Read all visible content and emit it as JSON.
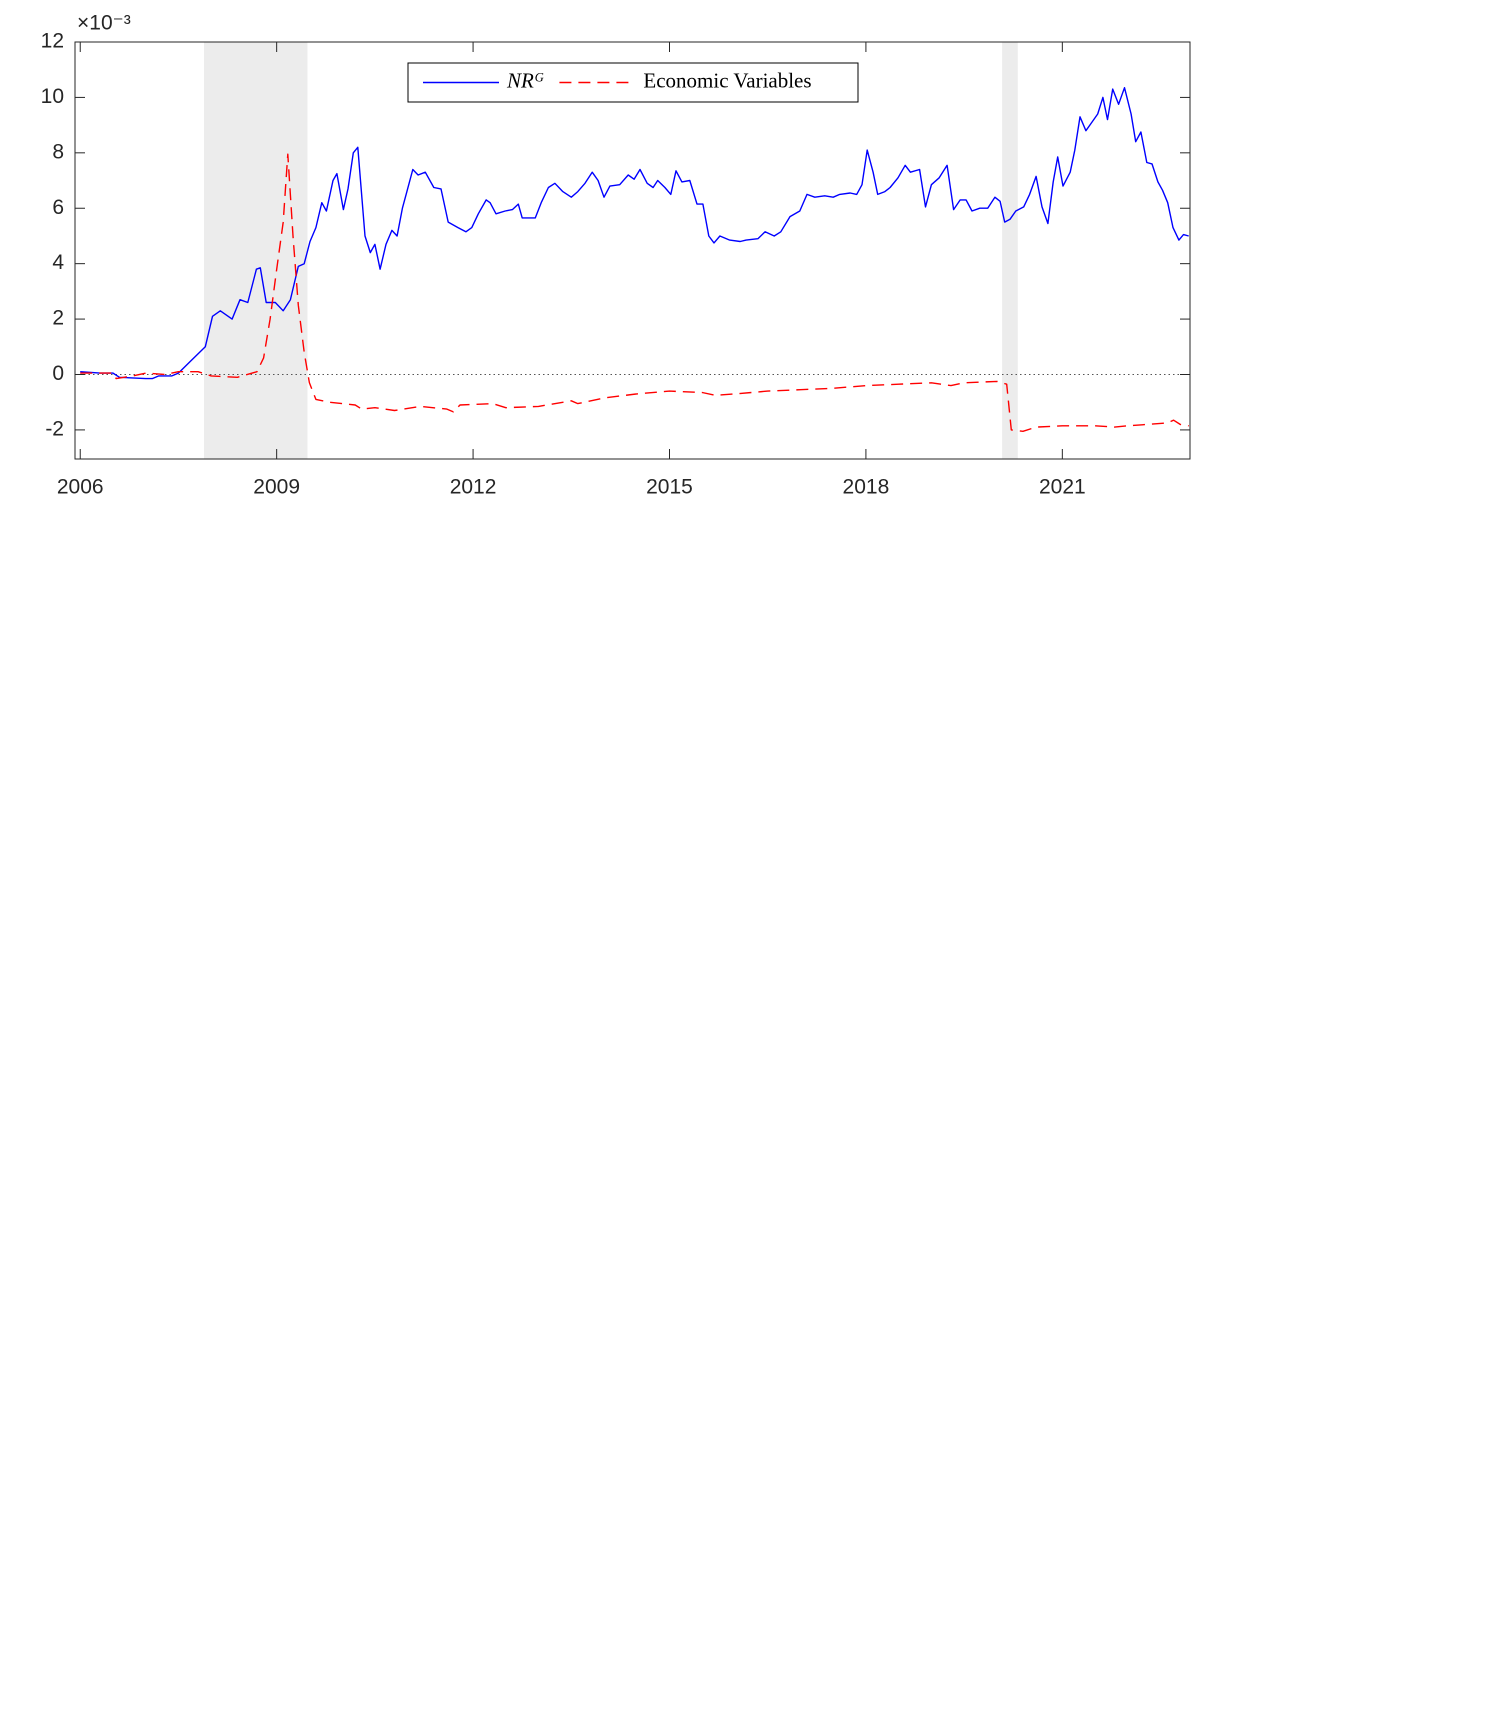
{
  "chart_data": {
    "type": "line",
    "y_exponent": "×10⁻³",
    "xlim": [
      2005.92,
      2022.95
    ],
    "ylim": [
      -3.05,
      12
    ],
    "xticks": [
      2006,
      2009,
      2012,
      2015,
      2018,
      2021
    ],
    "yticks": [
      -2,
      0,
      2,
      4,
      6,
      8,
      10,
      12
    ],
    "hline": 0,
    "shaded_regions": [
      [
        2007.89,
        2009.47
      ],
      [
        2020.08,
        2020.32
      ]
    ],
    "shade_color": "#ececec",
    "legend": "top-center",
    "series": [
      {
        "name": "NRᴳ",
        "color": "#0000ff",
        "line_style": "solid",
        "x": [
          2006.0,
          2006.3,
          2006.5,
          2006.6,
          2007.0,
          2007.1,
          2007.2,
          2007.4,
          2007.5,
          2007.68,
          2007.91,
          2008.02,
          2008.14,
          2008.32,
          2008.44,
          2008.56,
          2008.69,
          2008.75,
          2008.84,
          2008.98,
          2009.1,
          2009.21,
          2009.33,
          2009.42,
          2009.51,
          2009.6,
          2009.69,
          2009.76,
          2009.86,
          2009.92,
          2010.02,
          2010.09,
          2010.17,
          2010.24,
          2010.35,
          2010.43,
          2010.5,
          2010.58,
          2010.67,
          2010.76,
          2010.84,
          2010.92,
          2010.99,
          2011.08,
          2011.16,
          2011.27,
          2011.4,
          2011.51,
          2011.62,
          2011.77,
          2011.89,
          2011.98,
          2012.08,
          2012.2,
          2012.26,
          2012.35,
          2012.49,
          2012.6,
          2012.69,
          2012.75,
          2012.95,
          2013.04,
          2013.15,
          2013.25,
          2013.37,
          2013.5,
          2013.6,
          2013.71,
          2013.82,
          2013.91,
          2014.0,
          2014.09,
          2014.24,
          2014.37,
          2014.46,
          2014.55,
          2014.66,
          2014.75,
          2014.82,
          2014.93,
          2015.02,
          2015.1,
          2015.19,
          2015.31,
          2015.42,
          2015.51,
          2015.6,
          2015.68,
          2015.77,
          2015.92,
          2016.08,
          2016.17,
          2016.35,
          2016.46,
          2016.6,
          2016.7,
          2016.84,
          2016.99,
          2017.1,
          2017.22,
          2017.37,
          2017.5,
          2017.6,
          2017.76,
          2017.86,
          2017.94,
          2018.02,
          2018.11,
          2018.18,
          2018.29,
          2018.37,
          2018.49,
          2018.6,
          2018.68,
          2018.82,
          2018.91,
          2019.0,
          2019.12,
          2019.24,
          2019.34,
          2019.44,
          2019.53,
          2019.62,
          2019.74,
          2019.86,
          2019.97,
          2020.05,
          2020.12,
          2020.2,
          2020.29,
          2020.41,
          2020.5,
          2020.6,
          2020.69,
          2020.78,
          2020.86,
          2020.93,
          2021.01,
          2021.12,
          2021.19,
          2021.27,
          2021.36,
          2021.45,
          2021.54,
          2021.62,
          2021.69,
          2021.77,
          2021.86,
          2021.95,
          2022.05,
          2022.12,
          2022.2,
          2022.29,
          2022.37,
          2022.46,
          2022.53,
          2022.61,
          2022.69,
          2022.78,
          2022.85,
          2022.93
        ],
        "values": [
          0.1,
          0.05,
          0.05,
          -0.1,
          -0.15,
          -0.15,
          -0.05,
          -0.05,
          0.05,
          0.47,
          1.0,
          2.1,
          2.3,
          2.0,
          2.7,
          2.6,
          3.8,
          3.85,
          2.6,
          2.6,
          2.3,
          2.7,
          3.9,
          4.0,
          4.8,
          5.3,
          6.2,
          5.9,
          7.0,
          7.25,
          5.95,
          6.7,
          8.0,
          8.2,
          5.0,
          4.4,
          4.7,
          3.8,
          4.7,
          5.2,
          5.0,
          6.0,
          6.6,
          7.4,
          7.2,
          7.3,
          6.75,
          6.7,
          5.5,
          5.3,
          5.15,
          5.3,
          5.8,
          6.3,
          6.2,
          5.8,
          5.9,
          5.95,
          6.15,
          5.65,
          5.65,
          6.2,
          6.75,
          6.9,
          6.6,
          6.4,
          6.6,
          6.9,
          7.3,
          7.0,
          6.4,
          6.8,
          6.85,
          7.2,
          7.05,
          7.4,
          6.9,
          6.75,
          7.0,
          6.75,
          6.5,
          7.35,
          6.95,
          7.0,
          6.15,
          6.15,
          5.0,
          4.75,
          5.0,
          4.85,
          4.8,
          4.85,
          4.9,
          5.15,
          5.0,
          5.15,
          5.7,
          5.9,
          6.5,
          6.4,
          6.45,
          6.4,
          6.5,
          6.55,
          6.5,
          6.85,
          8.1,
          7.3,
          6.5,
          6.6,
          6.75,
          7.1,
          7.55,
          7.3,
          7.4,
          6.05,
          6.85,
          7.1,
          7.55,
          5.95,
          6.3,
          6.3,
          5.9,
          6.0,
          6.0,
          6.4,
          6.25,
          5.5,
          5.6,
          5.9,
          6.05,
          6.5,
          7.15,
          6.05,
          5.45,
          6.95,
          7.85,
          6.8,
          7.3,
          8.1,
          9.3,
          8.8,
          9.1,
          9.4,
          10.0,
          9.2,
          10.3,
          9.75,
          10.35,
          9.4,
          8.4,
          8.75,
          7.65,
          7.6,
          6.95,
          6.65,
          6.2,
          5.3,
          4.85,
          5.05,
          5.0
        ]
      },
      {
        "name": "Economic Variables",
        "color": "#ff0000",
        "line_style": "dashed",
        "x": [
          2006.0,
          2006.5,
          2006.55,
          2006.8,
          2007.0,
          2007.3,
          2007.5,
          2007.8,
          2008.0,
          2008.4,
          2008.7,
          2008.8,
          2008.9,
          2009.0,
          2009.1,
          2009.17,
          2009.25,
          2009.33,
          2009.42,
          2009.5,
          2009.6,
          2009.8,
          2010.0,
          2010.2,
          2010.3,
          2010.5,
          2010.8,
          2011.2,
          2011.6,
          2011.7,
          2011.8,
          2012.3,
          2012.5,
          2013.0,
          2013.5,
          2013.6,
          2014.0,
          2014.5,
          2015.0,
          2015.5,
          2015.7,
          2016.0,
          2016.5,
          2017.0,
          2017.5,
          2018.0,
          2018.5,
          2019.0,
          2019.3,
          2019.5,
          2020.0,
          2020.15,
          2020.22,
          2020.4,
          2020.6,
          2021.0,
          2021.5,
          2021.8,
          2022.0,
          2022.3,
          2022.6,
          2022.7,
          2022.8,
          2022.93
        ],
        "values": [
          0.05,
          0.05,
          -0.15,
          -0.05,
          0.05,
          0.0,
          0.1,
          0.1,
          -0.05,
          -0.1,
          0.1,
          0.6,
          2.0,
          3.8,
          5.5,
          7.95,
          5.0,
          2.5,
          0.8,
          -0.3,
          -0.9,
          -1.0,
          -1.05,
          -1.1,
          -1.25,
          -1.2,
          -1.3,
          -1.15,
          -1.25,
          -1.35,
          -1.1,
          -1.05,
          -1.2,
          -1.15,
          -0.95,
          -1.05,
          -0.85,
          -0.7,
          -0.6,
          -0.65,
          -0.75,
          -0.7,
          -0.6,
          -0.55,
          -0.5,
          -0.4,
          -0.35,
          -0.3,
          -0.4,
          -0.3,
          -0.25,
          -0.35,
          -2.0,
          -2.05,
          -1.9,
          -1.85,
          -1.85,
          -1.9,
          -1.85,
          -1.8,
          -1.75,
          -1.65,
          -1.8,
          -1.85
        ]
      }
    ]
  }
}
